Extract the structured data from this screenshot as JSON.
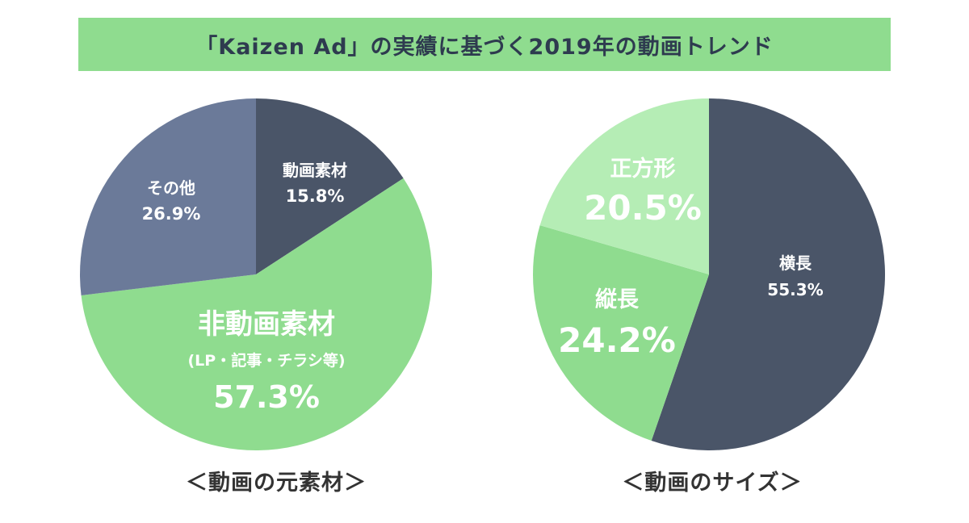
{
  "title": "「Kaizen Ad」の実績に基づく2019年の動画トレンド",
  "colors": {
    "banner": "#8fdc8f",
    "dark_slate": "#4a5568",
    "blue_gray": "#6b7a99",
    "green": "#8fdc8f",
    "light_green": "#b5edb5"
  },
  "chart_data": [
    {
      "type": "pie",
      "caption": "＜動画の元素材＞",
      "slices": [
        {
          "name": "動画素材",
          "value": 15.8,
          "label": "15.8%",
          "color": "#4a5568"
        },
        {
          "name": "非動画素材",
          "sublabel": "(LP・記事・チラシ等)",
          "value": 57.3,
          "label": "57.3%",
          "color": "#8fdc8f"
        },
        {
          "name": "その他",
          "value": 26.9,
          "label": "26.9%",
          "color": "#6b7a99"
        }
      ]
    },
    {
      "type": "pie",
      "caption": "＜動画のサイズ＞",
      "slices": [
        {
          "name": "横長",
          "value": 55.3,
          "label": "55.3%",
          "color": "#4a5568"
        },
        {
          "name": "縦長",
          "value": 24.2,
          "label": "24.2%",
          "color": "#8fdc8f"
        },
        {
          "name": "正方形",
          "value": 20.5,
          "label": "20.5%",
          "color": "#b5edb5"
        }
      ]
    }
  ]
}
